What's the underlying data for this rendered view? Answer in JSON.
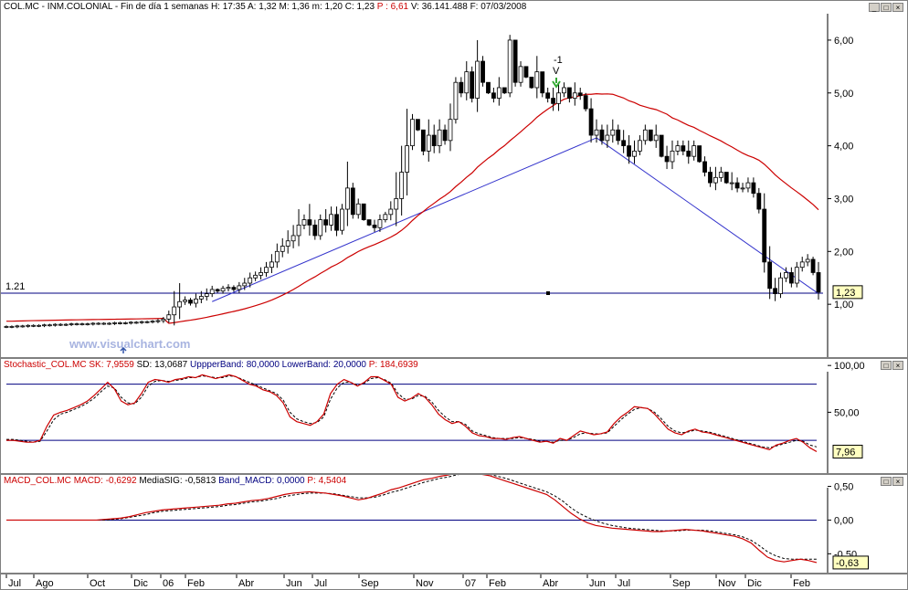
{
  "header": {
    "symbol": "COL.MC",
    "name": "INM.COLONIAL",
    "period": "Fin de día 1 semanas",
    "h_label": "H:",
    "h": "17:35",
    "a_label": "A:",
    "a": "1,32",
    "m_label": "M:",
    "m": "1,36",
    "mn_label": "m:",
    "mn": "1,20",
    "c_label": "C:",
    "c": "1,23",
    "p_label": "P :",
    "p": "6,61",
    "v_label": "V:",
    "v": "36.141.488",
    "f_label": "F:",
    "f": "07/03/2008"
  },
  "watermark": "www.visualchart.com",
  "stoch_header": {
    "name": "Stochastic_COL.MC",
    "sk": "SK: 7,9559",
    "sd": "SD: 13,0687",
    "upper": "UppperBand: 80,0000",
    "lower": "LowerBand: 20,0000",
    "p": "P: 184,6939"
  },
  "macd_header": {
    "name": "MACD_COL.MC",
    "macd": "MACD: -0,6292",
    "sig": "MediaSIG: -0,5813",
    "band": "Band_MACD: 0,0000",
    "p": "P: 4,5404"
  },
  "colors": {
    "price_candle": "#000000",
    "moving_average": "#cc0000",
    "trendline": "#3333cc",
    "support": "#000080",
    "stoch_k": "#cc0000",
    "stoch_d": "#000000",
    "macd_line": "#cc0000",
    "macd_signal": "#000000",
    "watermark": "#a8b4e0",
    "arrow": "#33aa33"
  },
  "time_labels": [
    "Jul",
    "Ago",
    "Oct",
    "Dic",
    "06",
    "Feb",
    "Abr",
    "Jun",
    "Jul",
    "Sep",
    "Nov",
    "07",
    "Feb",
    "Abr",
    "Jun",
    "Jul",
    "Sep",
    "Nov",
    "Dic",
    "Feb"
  ],
  "chart_data": [
    {
      "type": "candlestick",
      "title": "COL.MC - INM.COLONIAL - Fin de día 1 semanas",
      "y_ticks": [
        "1,00",
        "2,00",
        "3,00",
        "4,00",
        "5,00",
        "6,00"
      ],
      "ylim": [
        0.0,
        6.5
      ],
      "support_level": 1.21,
      "support_label": "1.21",
      "last_value": "1,23",
      "signal_marker": "-1",
      "signal_marker_sub": "V",
      "close": [
        0.58,
        0.58,
        0.59,
        0.59,
        0.6,
        0.6,
        0.6,
        0.61,
        0.61,
        0.62,
        0.62,
        0.62,
        0.63,
        0.63,
        0.63,
        0.63,
        0.64,
        0.64,
        0.64,
        0.64,
        0.65,
        0.65,
        0.65,
        0.66,
        0.66,
        0.67,
        0.67,
        0.68,
        0.69,
        0.72,
        0.8,
        0.95,
        1.05,
        1.08,
        1.02,
        1.1,
        1.15,
        1.2,
        1.28,
        1.25,
        1.3,
        1.32,
        1.28,
        1.35,
        1.4,
        1.5,
        1.55,
        1.6,
        1.7,
        1.8,
        2.0,
        2.1,
        2.2,
        2.3,
        2.5,
        2.6,
        2.5,
        2.3,
        2.6,
        2.5,
        2.7,
        2.4,
        2.8,
        3.2,
        2.7,
        2.9,
        2.6,
        2.5,
        2.45,
        2.6,
        2.7,
        2.8,
        3.0,
        3.5,
        4.0,
        4.5,
        4.3,
        3.9,
        4.2,
        4.0,
        4.3,
        4.1,
        4.5,
        5.2,
        5.0,
        5.4,
        4.9,
        5.6,
        5.2,
        5.0,
        4.9,
        5.1,
        5.0,
        6.0,
        5.2,
        5.5,
        5.3,
        5.1,
        5.4,
        5.0,
        4.9,
        4.8,
        5.0,
        5.1,
        4.9,
        5.0,
        4.95,
        4.7,
        4.2,
        4.3,
        4.1,
        4.2,
        4.3,
        4.1,
        4.0,
        3.8,
        3.9,
        4.1,
        4.3,
        4.1,
        4.2,
        3.8,
        3.7,
        3.9,
        4.0,
        3.9,
        3.8,
        4.0,
        3.7,
        3.5,
        3.3,
        3.4,
        3.5,
        3.3,
        3.3,
        3.2,
        3.2,
        3.3,
        3.1,
        2.8,
        1.8,
        1.3,
        1.2,
        1.5,
        1.6,
        1.4,
        1.7,
        1.8,
        1.85,
        1.6,
        1.23
      ],
      "high": [
        0.6,
        0.6,
        0.61,
        0.61,
        0.62,
        0.62,
        0.62,
        0.63,
        0.63,
        0.64,
        0.64,
        0.64,
        0.65,
        0.65,
        0.65,
        0.65,
        0.66,
        0.66,
        0.66,
        0.66,
        0.67,
        0.67,
        0.67,
        0.68,
        0.68,
        0.69,
        0.69,
        0.7,
        0.72,
        0.76,
        0.88,
        1.25,
        1.4,
        1.15,
        1.12,
        1.2,
        1.25,
        1.3,
        1.35,
        1.3,
        1.35,
        1.38,
        1.36,
        1.42,
        1.5,
        1.6,
        1.62,
        1.7,
        1.8,
        1.95,
        2.15,
        2.25,
        2.4,
        2.5,
        2.8,
        2.7,
        2.9,
        2.6,
        2.7,
        2.8,
        2.85,
        2.85,
        2.9,
        3.7,
        3.3,
        3.0,
        2.9,
        2.6,
        2.6,
        2.7,
        2.75,
        2.95,
        3.5,
        4.0,
        4.7,
        4.6,
        4.5,
        4.2,
        4.5,
        4.4,
        4.5,
        4.4,
        4.8,
        5.3,
        5.3,
        5.6,
        5.5,
        6.0,
        5.7,
        5.2,
        5.1,
        5.3,
        5.1,
        6.1,
        5.9,
        5.6,
        5.5,
        5.3,
        5.7,
        5.3,
        5.1,
        5.1,
        5.2,
        5.2,
        5.0,
        5.2,
        5.1,
        5.0,
        4.9,
        4.5,
        4.4,
        4.4,
        4.5,
        4.4,
        4.3,
        4.2,
        4.1,
        4.2,
        4.4,
        4.3,
        4.4,
        4.2,
        4.0,
        4.1,
        4.1,
        4.1,
        4.1,
        4.1,
        4.0,
        3.8,
        3.6,
        3.6,
        3.6,
        3.5,
        3.5,
        3.4,
        3.3,
        3.4,
        3.4,
        3.2,
        3.1,
        2.1,
        1.5,
        1.6,
        1.7,
        1.7,
        1.8,
        1.9,
        1.95,
        1.9,
        1.8
      ]
    },
    {
      "type": "line",
      "title": "Stochastic_COL.MC",
      "y_ticks": [
        "50,00",
        "100,00"
      ],
      "ylim": [
        -15,
        107
      ],
      "bands": [
        20,
        80
      ],
      "last_value": "7,96",
      "series": [
        {
          "name": "SK",
          "values": [
            20,
            20,
            19,
            18,
            18,
            20,
            35,
            47,
            50,
            52,
            55,
            58,
            62,
            68,
            75,
            82,
            75,
            62,
            58,
            60,
            70,
            82,
            85,
            84,
            82,
            85,
            86,
            88,
            87,
            90,
            88,
            86,
            88,
            90,
            88,
            84,
            80,
            78,
            74,
            72,
            68,
            60,
            45,
            40,
            38,
            36,
            40,
            48,
            70,
            80,
            85,
            82,
            78,
            82,
            88,
            88,
            84,
            80,
            66,
            62,
            65,
            70,
            66,
            58,
            48,
            42,
            38,
            40,
            35,
            28,
            25,
            24,
            22,
            22,
            21,
            23,
            24,
            22,
            20,
            18,
            19,
            17,
            22,
            20,
            25,
            30,
            28,
            26,
            27,
            29,
            38,
            45,
            50,
            56,
            55,
            54,
            48,
            40,
            32,
            28,
            26,
            30,
            32,
            29,
            28,
            26,
            24,
            22,
            20,
            18,
            16,
            14,
            12,
            10,
            15,
            17,
            20,
            22,
            18,
            12,
            8
          ]
        },
        {
          "name": "SD",
          "values": [
            21,
            21,
            20,
            19,
            18,
            19,
            30,
            42,
            48,
            50,
            53,
            56,
            60,
            65,
            72,
            78,
            76,
            66,
            60,
            59,
            66,
            78,
            83,
            84,
            83,
            84,
            85,
            87,
            87,
            89,
            88,
            87,
            87,
            89,
            88,
            85,
            82,
            79,
            76,
            73,
            70,
            63,
            50,
            43,
            40,
            38,
            39,
            45,
            64,
            76,
            82,
            82,
            79,
            81,
            86,
            87,
            85,
            81,
            70,
            64,
            64,
            68,
            67,
            61,
            52,
            45,
            40,
            40,
            37,
            30,
            27,
            25,
            23,
            22,
            22,
            22,
            23,
            22,
            21,
            19,
            19,
            18,
            20,
            20,
            23,
            27,
            28,
            27,
            27,
            28,
            35,
            42,
            48,
            53,
            55,
            54,
            50,
            43,
            35,
            30,
            28,
            29,
            31,
            30,
            29,
            27,
            25,
            23,
            21,
            19,
            17,
            15,
            13,
            12,
            14,
            16,
            18,
            20,
            19,
            15,
            13
          ]
        }
      ]
    },
    {
      "type": "line",
      "title": "MACD_COL.MC",
      "y_ticks": [
        "-0,50",
        "0,00",
        "0,50"
      ],
      "ylim": [
        -0.78,
        0.67
      ],
      "band": 0.0,
      "last_value": "-0,63",
      "series": [
        {
          "name": "MACD",
          "values": [
            0.0,
            0.0,
            0.0,
            0.0,
            0.0,
            0.0,
            0.0,
            0.0,
            0.0,
            0.0,
            0.0,
            0.0,
            0.01,
            0.02,
            0.03,
            0.05,
            0.08,
            0.11,
            0.13,
            0.15,
            0.16,
            0.17,
            0.18,
            0.19,
            0.2,
            0.21,
            0.22,
            0.24,
            0.25,
            0.27,
            0.29,
            0.3,
            0.32,
            0.35,
            0.38,
            0.4,
            0.41,
            0.42,
            0.41,
            0.4,
            0.38,
            0.36,
            0.33,
            0.3,
            0.32,
            0.36,
            0.4,
            0.45,
            0.48,
            0.52,
            0.56,
            0.6,
            0.62,
            0.65,
            0.67,
            0.7,
            0.72,
            0.7,
            0.68,
            0.66,
            0.62,
            0.58,
            0.54,
            0.5,
            0.46,
            0.42,
            0.38,
            0.3,
            0.2,
            0.1,
            0.02,
            -0.04,
            -0.08,
            -0.1,
            -0.12,
            -0.13,
            -0.14,
            -0.15,
            -0.16,
            -0.17,
            -0.17,
            -0.16,
            -0.15,
            -0.14,
            -0.15,
            -0.16,
            -0.18,
            -0.2,
            -0.22,
            -0.24,
            -0.28,
            -0.34,
            -0.45,
            -0.55,
            -0.6,
            -0.62,
            -0.6,
            -0.58,
            -0.6,
            -0.63
          ]
        },
        {
          "name": "MediaSIG",
          "values": [
            0.0,
            0.0,
            0.0,
            0.0,
            0.0,
            0.0,
            0.0,
            0.0,
            0.0,
            0.0,
            0.0,
            0.0,
            0.0,
            0.01,
            0.02,
            0.04,
            0.06,
            0.08,
            0.11,
            0.13,
            0.14,
            0.15,
            0.16,
            0.17,
            0.18,
            0.19,
            0.2,
            0.22,
            0.23,
            0.25,
            0.27,
            0.28,
            0.3,
            0.32,
            0.35,
            0.37,
            0.39,
            0.4,
            0.4,
            0.4,
            0.39,
            0.37,
            0.35,
            0.33,
            0.33,
            0.34,
            0.37,
            0.41,
            0.44,
            0.48,
            0.52,
            0.56,
            0.59,
            0.62,
            0.64,
            0.67,
            0.69,
            0.7,
            0.69,
            0.68,
            0.65,
            0.62,
            0.58,
            0.54,
            0.5,
            0.46,
            0.42,
            0.36,
            0.28,
            0.18,
            0.1,
            0.04,
            -0.01,
            -0.05,
            -0.08,
            -0.1,
            -0.12,
            -0.13,
            -0.14,
            -0.15,
            -0.16,
            -0.16,
            -0.16,
            -0.15,
            -0.15,
            -0.15,
            -0.16,
            -0.18,
            -0.2,
            -0.22,
            -0.25,
            -0.3,
            -0.38,
            -0.47,
            -0.53,
            -0.57,
            -0.58,
            -0.58,
            -0.58,
            -0.58
          ]
        }
      ]
    }
  ]
}
